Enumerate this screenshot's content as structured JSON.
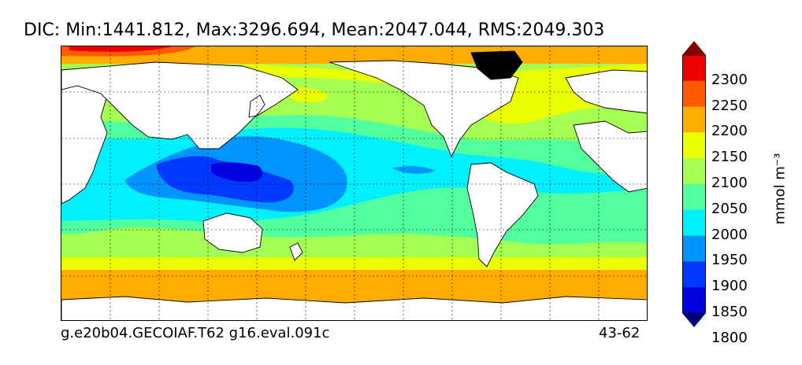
{
  "figure": {
    "title": "DIC: Min:1441.812, Max:3296.694, Mean:2047.044, RMS:2049.303",
    "footer_left": "g.e20b04.GECOIAF.T62 g16.eval.091c",
    "footer_right": "43-62"
  },
  "colorbar": {
    "units_label": "mmol m⁻³",
    "tick_labels": [
      "2300",
      "2250",
      "2200",
      "2150",
      "2100",
      "2050",
      "2000",
      "1950",
      "1900",
      "1850",
      "1800"
    ],
    "colors": [
      "#00007f",
      "#0000e0",
      "#0038ff",
      "#0094ff",
      "#00f0ff",
      "#52ff9e",
      "#a4ff52",
      "#eaff00",
      "#ffac00",
      "#ff5a00",
      "#ef0000",
      "#800000"
    ],
    "extend": "both"
  },
  "map": {
    "type": "filled-contour",
    "variable": "DIC",
    "projection": "cylindrical",
    "center_longitude": "Pacific",
    "grid": "dotted",
    "land_color": "#ffffff",
    "contour_levels": [
      1800,
      1850,
      1900,
      1950,
      2000,
      2050,
      2100,
      2150,
      2200,
      2250,
      2300
    ]
  }
}
